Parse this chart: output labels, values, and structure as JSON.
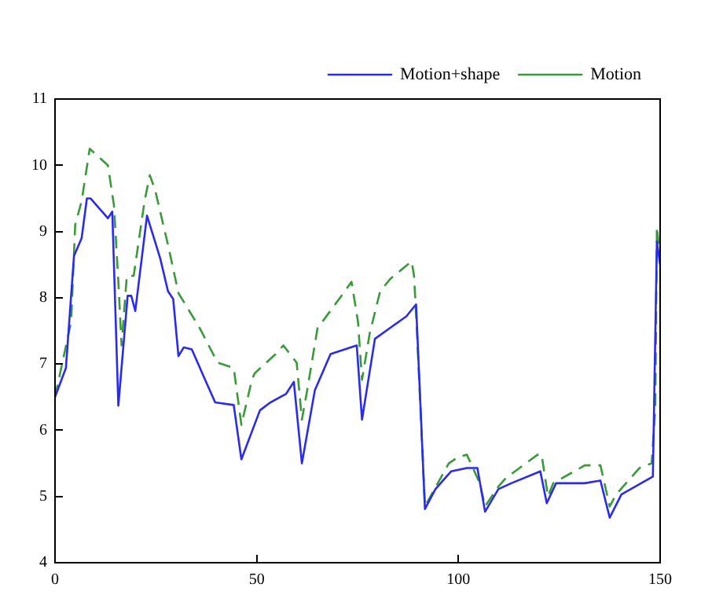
{
  "chart_data": {
    "type": "line",
    "legend": "top right",
    "grid": false,
    "marker": "none",
    "xlim": [
      0,
      150
    ],
    "xticks": [
      0,
      50,
      100,
      150
    ],
    "ylim": [
      4,
      11
    ],
    "yticks": [
      4,
      5,
      6,
      7,
      8,
      9,
      10,
      11
    ],
    "series": [
      {
        "name": "Motion+shape",
        "color": "#2a2af0",
        "line_style": "solid",
        "x": [
          0,
          2.7,
          4.7,
          6.6,
          7.9,
          8.8,
          13.1,
          14.2,
          15.7,
          18,
          18.9,
          19.9,
          22.8,
          26.1,
          28,
          29.3,
          30.6,
          31.9,
          33.9,
          36.5,
          39.7,
          44.3,
          46.2,
          50.8,
          53.4,
          57.3,
          59.2,
          61.2,
          64.4,
          68.3,
          74.8,
          76.1,
          79.3,
          83.2,
          87.1,
          89.5,
          91.7,
          94.3,
          98.2,
          102.1,
          104.7,
          106.6,
          109.9,
          113.1,
          120.3,
          121.9,
          124.2,
          131.3,
          135.2,
          137.5,
          140.4,
          148.2,
          149.2,
          150
        ],
        "values": [
          6.5,
          6.94,
          8.63,
          8.9,
          9.5,
          9.5,
          9.2,
          9.3,
          6.37,
          8.03,
          8.03,
          7.8,
          9.24,
          8.59,
          8.1,
          7.98,
          7.12,
          7.25,
          7.22,
          6.86,
          6.42,
          6.38,
          5.56,
          6.3,
          6.42,
          6.55,
          6.73,
          5.5,
          6.6,
          7.15,
          7.28,
          6.16,
          7.38,
          7.55,
          7.72,
          7.9,
          4.81,
          5.11,
          5.38,
          5.43,
          5.43,
          4.77,
          5.11,
          5.2,
          5.38,
          4.9,
          5.2,
          5.2,
          5.24,
          4.68,
          5.03,
          5.3,
          8.85,
          8.5
        ]
      },
      {
        "name": "Motion",
        "color": "#3a9a3a",
        "line_style": "dashed",
        "x": [
          0,
          4,
          5,
          6.6,
          8.6,
          13.1,
          14.6,
          15.7,
          16.5,
          17.8,
          19.5,
          22.2,
          23.5,
          24.8,
          28,
          30.6,
          35.8,
          40.3,
          44.3,
          46.2,
          48.8,
          49.5,
          54.7,
          56.6,
          59.9,
          61.2,
          62.5,
          65.1,
          66.3,
          71.5,
          73.5,
          75.1,
          76.1,
          78,
          80.6,
          83.2,
          88.4,
          89,
          89.6,
          91.7,
          97.6,
          100.1,
          102.1,
          105.3,
          106.6,
          109.9,
          111.8,
          119.6,
          120.6,
          122.2,
          123.5,
          131.3,
          135.2,
          137.5,
          139.1,
          144.9,
          147.9,
          148.8,
          149.2,
          150
        ],
        "values": [
          6.5,
          7.64,
          9.1,
          9.46,
          10.25,
          10.0,
          9.4,
          8.24,
          7.28,
          8.33,
          8.33,
          9.46,
          9.85,
          9.63,
          8.8,
          8.07,
          7.55,
          7.02,
          6.94,
          6.08,
          6.76,
          6.86,
          7.15,
          7.28,
          7.02,
          6.16,
          6.6,
          7.55,
          7.64,
          8.07,
          8.24,
          7.64,
          6.76,
          7.46,
          8.1,
          8.29,
          8.55,
          8.33,
          7.64,
          4.85,
          5.5,
          5.6,
          5.63,
          5.2,
          4.85,
          5.15,
          5.28,
          5.63,
          5.64,
          5.0,
          5.2,
          5.47,
          5.47,
          4.85,
          5.03,
          5.43,
          5.5,
          6.33,
          9.07,
          8.6
        ]
      }
    ]
  }
}
